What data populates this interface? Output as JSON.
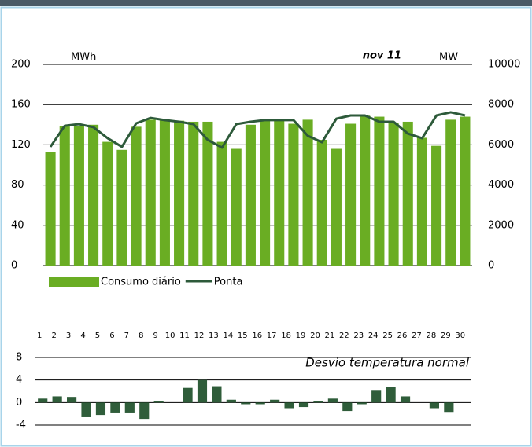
{
  "chart_data": [
    {
      "type": "bar",
      "y_label": "MWh",
      "y2_label": "MW",
      "annotation": "nov 11",
      "ylim": [
        0,
        200
      ],
      "yticks": [
        0,
        40,
        80,
        120,
        160,
        200
      ],
      "y2lim": [
        0,
        10000
      ],
      "y2ticks": [
        0,
        2000,
        4000,
        6000,
        8000,
        10000
      ],
      "grid": true,
      "legend": "bottom-left",
      "series": [
        {
          "name": "Consumo diário",
          "type": "bar",
          "color": "#6aad23",
          "values": [
            113,
            139,
            139,
            140,
            123,
            115,
            138,
            145,
            145,
            144,
            143,
            143,
            123,
            116,
            140,
            145,
            145,
            141,
            145,
            125,
            116,
            141,
            149,
            148,
            142,
            143,
            127,
            119,
            145,
            148
          ]
        },
        {
          "name": "Ponta",
          "type": "line",
          "axis": "y2",
          "color": "#2d5a3a",
          "values": [
            5900,
            6950,
            7030,
            6880,
            6330,
            5900,
            7070,
            7340,
            7230,
            7150,
            7030,
            6250,
            5860,
            7030,
            7150,
            7230,
            7230,
            7230,
            6450,
            6130,
            7300,
            7460,
            7460,
            7150,
            7150,
            6560,
            6330,
            7460,
            7620,
            7460
          ]
        }
      ]
    },
    {
      "type": "bar",
      "title": "Desvio temperatura normal",
      "categories": [
        "1",
        "2",
        "3",
        "4",
        "5",
        "6",
        "7",
        "8",
        "9",
        "10",
        "11",
        "12",
        "13",
        "14",
        "15",
        "16",
        "17",
        "18",
        "19",
        "20",
        "21",
        "22",
        "23",
        "24",
        "25",
        "26",
        "27",
        "28",
        "29",
        "30"
      ],
      "values": [
        0.7,
        1.1,
        1.0,
        -2.6,
        -2.2,
        -1.9,
        -1.9,
        -2.9,
        0.2,
        0,
        2.6,
        4.0,
        2.9,
        0.5,
        -0.3,
        -0.3,
        0.5,
        -1.0,
        -0.8,
        0.2,
        0.7,
        -1.5,
        -0.3,
        2.1,
        2.8,
        1.1,
        0,
        -1.0,
        -1.8,
        0
      ],
      "color": "#2f5d3a",
      "ylim": [
        -4,
        8
      ],
      "yticks": [
        -4,
        0,
        4,
        8
      ],
      "grid": true
    }
  ]
}
